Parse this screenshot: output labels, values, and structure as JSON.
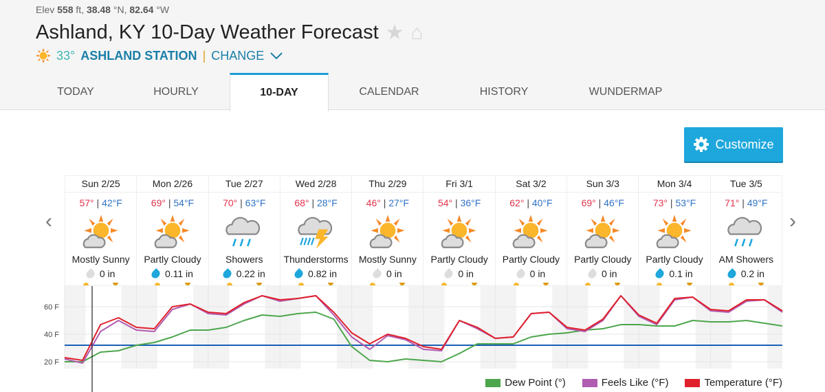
{
  "header": {
    "elev_label": "Elev",
    "elev": "558",
    "elev_unit": "ft,",
    "lat": "38.48",
    "lat_unit": "°N,",
    "lon": "82.64",
    "lon_unit": "°W",
    "title": "Ashland, KY 10-Day Weather Forecast",
    "current_temp": "33°",
    "station": "ASHLAND STATION",
    "separator": "|",
    "change": "CHANGE"
  },
  "tabs": [
    {
      "label": "TODAY"
    },
    {
      "label": "HOURLY"
    },
    {
      "label": "10-DAY",
      "active": true
    },
    {
      "label": "CALENDAR"
    },
    {
      "label": "HISTORY"
    },
    {
      "label": "WUNDERMAP"
    }
  ],
  "customize_label": "Customize",
  "days": [
    {
      "date": "Sun 2/25",
      "hi": "57°",
      "lo": "42°F",
      "icon": "mostly-sunny",
      "cond": "Mostly Sunny",
      "precip": "0 in",
      "wet": false
    },
    {
      "date": "Mon 2/26",
      "hi": "69°",
      "lo": "54°F",
      "icon": "partly-cloudy",
      "cond": "Partly Cloudy",
      "precip": "0.11 in",
      "wet": true
    },
    {
      "date": "Tue 2/27",
      "hi": "70°",
      "lo": "63°F",
      "icon": "showers",
      "cond": "Showers",
      "precip": "0.22 in",
      "wet": true
    },
    {
      "date": "Wed 2/28",
      "hi": "68°",
      "lo": "28°F",
      "icon": "thunderstorms",
      "cond": "Thunderstorms",
      "precip": "0.82 in",
      "wet": true
    },
    {
      "date": "Thu 2/29",
      "hi": "46°",
      "lo": "27°F",
      "icon": "mostly-sunny",
      "cond": "Mostly Sunny",
      "precip": "0 in",
      "wet": false
    },
    {
      "date": "Fri 3/1",
      "hi": "54°",
      "lo": "36°F",
      "icon": "partly-cloudy",
      "cond": "Partly Cloudy",
      "precip": "0 in",
      "wet": false
    },
    {
      "date": "Sat 3/2",
      "hi": "62°",
      "lo": "40°F",
      "icon": "partly-cloudy",
      "cond": "Partly Cloudy",
      "precip": "0 in",
      "wet": false
    },
    {
      "date": "Sun 3/3",
      "hi": "69°",
      "lo": "46°F",
      "icon": "partly-cloudy",
      "cond": "Partly Cloudy",
      "precip": "0 in",
      "wet": false
    },
    {
      "date": "Mon 3/4",
      "hi": "73°",
      "lo": "53°F",
      "icon": "partly-cloudy",
      "cond": "Partly Cloudy",
      "precip": "0.1 in",
      "wet": true
    },
    {
      "date": "Tue 3/5",
      "hi": "71°",
      "lo": "49°F",
      "icon": "showers",
      "cond": "AM Showers",
      "precip": "0.2 in",
      "wet": true
    }
  ],
  "chart_data": {
    "type": "line",
    "x_unit": "hours from start of Sun 2/25, 6-hour steps",
    "x": [
      0,
      6,
      12,
      18,
      24,
      30,
      36,
      42,
      48,
      54,
      60,
      66,
      72,
      78,
      84,
      90,
      96,
      102,
      108,
      114,
      120,
      126,
      132,
      138,
      144,
      150,
      156,
      162,
      168,
      174,
      180,
      186,
      192,
      198,
      204,
      210,
      216,
      222,
      228,
      234,
      240
    ],
    "yticks": [
      "20 F",
      "40 F",
      "60 F"
    ],
    "ylim": [
      15,
      75
    ],
    "freezing_line": 32,
    "series": [
      {
        "name": "Dew Point (°)",
        "color": "#4ca64c",
        "values": [
          20,
          20,
          27,
          28,
          32,
          34,
          38,
          43,
          43,
          45,
          50,
          54,
          53,
          55,
          56,
          51,
          31,
          21,
          20,
          22,
          21,
          20,
          26,
          33,
          33,
          33,
          38,
          40,
          41,
          43,
          44,
          47,
          47,
          46,
          46,
          50,
          49,
          49,
          50,
          48,
          46
        ]
      },
      {
        "name": "Feels Like (°F)",
        "color": "#b05cb0",
        "values": [
          22,
          19,
          42,
          50,
          43,
          42,
          58,
          62,
          55,
          54,
          62,
          68,
          64,
          66,
          68,
          54,
          38,
          29,
          39,
          36,
          29,
          28,
          50,
          44,
          37,
          38,
          55,
          56,
          44,
          42,
          50,
          68,
          53,
          47,
          65,
          67,
          57,
          56,
          64,
          65,
          56
        ]
      },
      {
        "name": "Temperature (°F)",
        "color": "#e0202c",
        "values": [
          23,
          21,
          47,
          52,
          45,
          44,
          60,
          62,
          56,
          55,
          63,
          68,
          65,
          66,
          68,
          56,
          41,
          33,
          40,
          37,
          31,
          29,
          50,
          45,
          37,
          38,
          55,
          56,
          45,
          43,
          51,
          68,
          54,
          48,
          66,
          67,
          58,
          57,
          65,
          65,
          57
        ]
      }
    ],
    "legend": "bottom-right"
  }
}
